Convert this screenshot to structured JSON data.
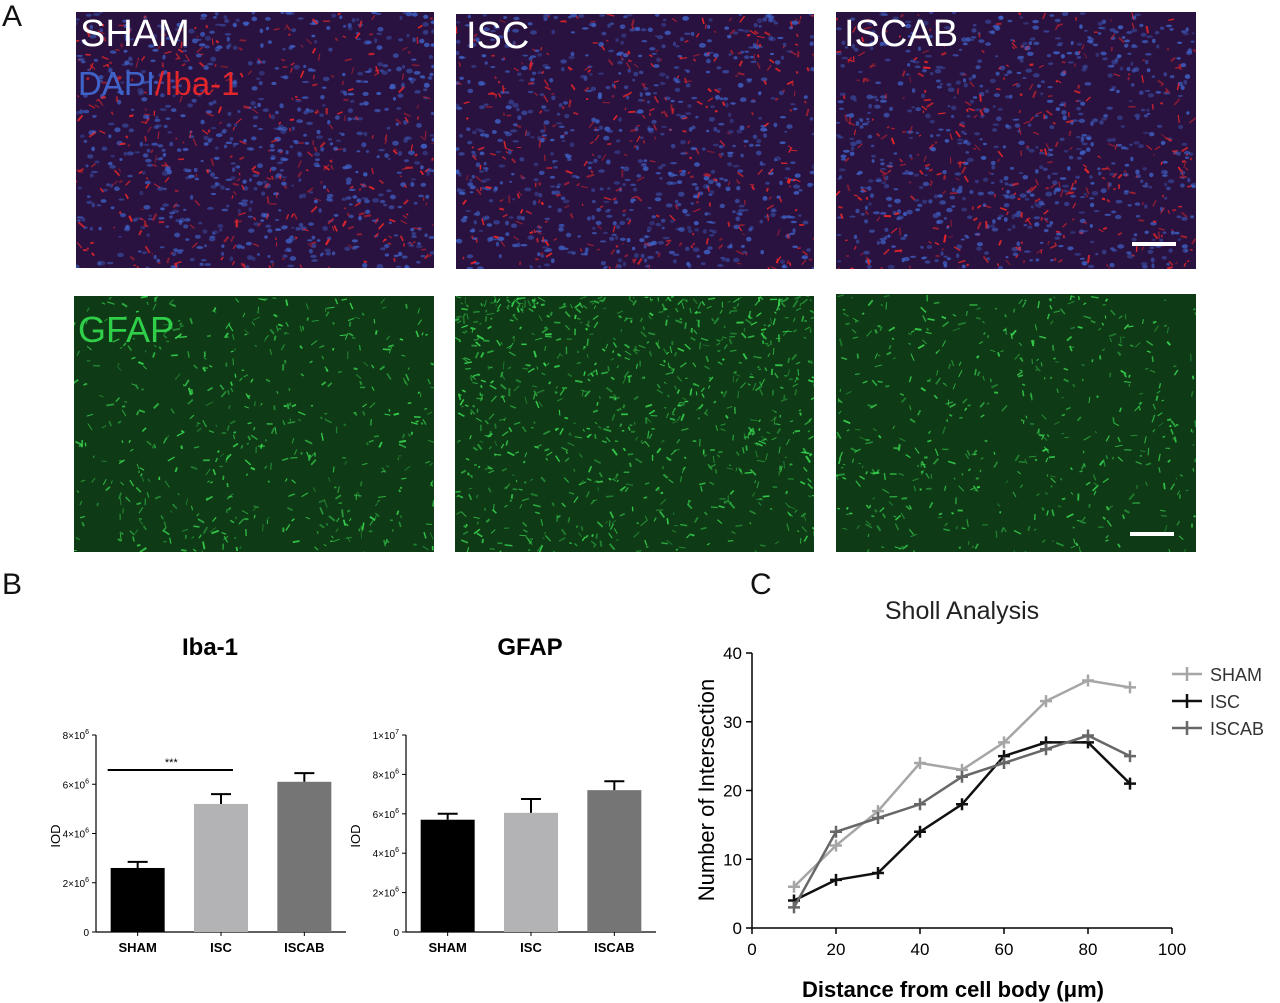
{
  "panel_letters": {
    "a": "A",
    "b": "B",
    "c": "C"
  },
  "micrographs": {
    "top_row": [
      {
        "label": "SHAM",
        "stain": "DAPI/Iba-1",
        "stain_part1": "DAPI",
        "stain_sep": "/",
        "stain_part2": "Iba-1"
      },
      {
        "label": "ISC"
      },
      {
        "label": "ISCAB"
      }
    ],
    "bottom_row": [
      {
        "label": "GFAP"
      },
      {
        "label": ""
      },
      {
        "label": ""
      }
    ],
    "colors": {
      "dapi": "#3f63c8",
      "iba1": "#e3262a",
      "gfap": "#2fcf4a",
      "label_white": "#ffffff"
    }
  },
  "chart_data": [
    {
      "type": "bar",
      "title": "Iba-1",
      "ylabel": "IOD",
      "categories": [
        "SHAM",
        "ISC",
        "ISCAB"
      ],
      "values": [
        2600000,
        5200000,
        6100000
      ],
      "errors": [
        250000,
        400000,
        350000
      ],
      "colors": [
        "#000000",
        "#b3b3b6",
        "#757575"
      ],
      "ylim": [
        0,
        8000000
      ],
      "yticks": [
        0,
        2000000,
        4000000,
        6000000,
        8000000
      ],
      "ytick_labels": [
        [
          "0",
          ""
        ],
        [
          "2×10",
          "6"
        ],
        [
          "4×10",
          "6"
        ],
        [
          "6×10",
          "6"
        ],
        [
          "8×10",
          "6"
        ]
      ],
      "significance": {
        "from": "SHAM",
        "to": "ISC",
        "label": "***"
      }
    },
    {
      "type": "bar",
      "title": "GFAP",
      "ylabel": "IOD",
      "categories": [
        "SHAM",
        "ISC",
        "ISCAB"
      ],
      "values": [
        5700000,
        6050000,
        7200000
      ],
      "errors": [
        300000,
        700000,
        450000
      ],
      "colors": [
        "#000000",
        "#b3b3b6",
        "#757575"
      ],
      "ylim": [
        0,
        10000000
      ],
      "yticks": [
        0,
        2000000,
        4000000,
        6000000,
        8000000,
        10000000
      ],
      "ytick_labels": [
        [
          "0",
          ""
        ],
        [
          "2×10",
          "6"
        ],
        [
          "4×10",
          "6"
        ],
        [
          "6×10",
          "6"
        ],
        [
          "8×10",
          "6"
        ],
        [
          "1×10",
          "7"
        ]
      ]
    },
    {
      "type": "line",
      "title": "Sholl Analysis",
      "xlabel": "Distance from cell body (μm)",
      "ylabel": "Number of Intersection",
      "xlim": [
        0,
        100
      ],
      "ylim": [
        0,
        40
      ],
      "xticks": [
        0,
        20,
        40,
        60,
        80,
        100
      ],
      "yticks": [
        0,
        10,
        20,
        30,
        40
      ],
      "legend": "right",
      "series": [
        {
          "name": "SHAM",
          "color": "#a6a6a6",
          "x": [
            10,
            20,
            30,
            40,
            50,
            60,
            70,
            80,
            90
          ],
          "y": [
            6,
            12,
            17,
            24,
            23,
            27,
            33,
            36,
            35
          ]
        },
        {
          "name": "ISC",
          "color": "#111111",
          "x": [
            10,
            20,
            30,
            40,
            50,
            60,
            70,
            80,
            90
          ],
          "y": [
            4,
            7,
            8,
            14,
            18,
            25,
            27,
            27,
            21
          ]
        },
        {
          "name": "ISCAB",
          "color": "#686868",
          "x": [
            10,
            20,
            30,
            40,
            50,
            60,
            70,
            80,
            90
          ],
          "y": [
            3,
            14,
            16,
            18,
            22,
            24,
            26,
            28,
            25
          ]
        }
      ]
    }
  ]
}
